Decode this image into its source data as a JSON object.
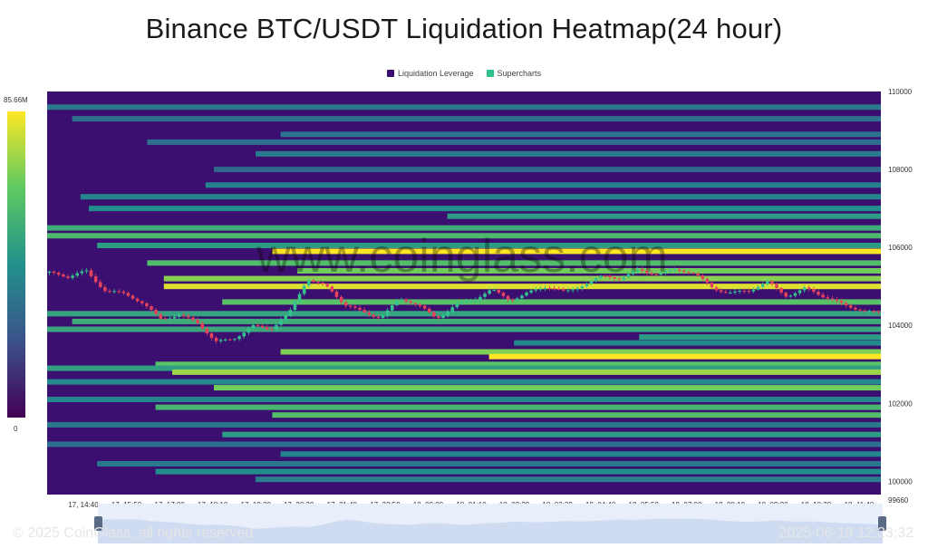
{
  "title": "Binance BTC/USDT Liquidation Heatmap(24 hour)",
  "legend": [
    {
      "label": "Liquidation Leverage",
      "color": "#3b0f6f"
    },
    {
      "label": "Supercharts",
      "color": "#2fc28a"
    }
  ],
  "watermark": "www.coinglass.com",
  "footer": {
    "copyright": "© 2025 CoinGlass, all rights reserved",
    "timestamp": "2025-06-18 12:23:32"
  },
  "colorbar": {
    "max_label": "85.66M",
    "min_label": "0"
  },
  "chart_data": {
    "type": "heatmap",
    "title": "Binance BTC/USDT Liquidation Heatmap(24 hour)",
    "x_tick_labels": [
      "17, 14:40",
      "17, 15:50",
      "17, 17:00",
      "17, 18:10",
      "17, 19:20",
      "17, 20:30",
      "17, 21:40",
      "17, 22:50",
      "18, 00:00",
      "18, 01:10",
      "18, 02:20",
      "18, 03:30",
      "18, 04:40",
      "18, 05:50",
      "18, 07:00",
      "18, 08:10",
      "18, 09:20",
      "18, 10:30",
      "18, 11:40"
    ],
    "y_tick_labels": [
      "110000",
      "108000",
      "106000",
      "104000",
      "102000",
      "100000",
      "99660"
    ],
    "ylim": [
      99660,
      110000
    ],
    "colorbar_range": [
      0,
      85.66
    ],
    "colorbar_unit": "M",
    "liquidation_levels": [
      {
        "price": 109600,
        "start": 0.0,
        "intensity": 0.35
      },
      {
        "price": 109300,
        "start": 0.03,
        "intensity": 0.3
      },
      {
        "price": 108900,
        "start": 0.28,
        "intensity": 0.32
      },
      {
        "price": 108700,
        "start": 0.12,
        "intensity": 0.28
      },
      {
        "price": 108400,
        "start": 0.25,
        "intensity": 0.36
      },
      {
        "price": 108000,
        "start": 0.2,
        "intensity": 0.25
      },
      {
        "price": 107600,
        "start": 0.19,
        "intensity": 0.4
      },
      {
        "price": 107300,
        "start": 0.04,
        "intensity": 0.42
      },
      {
        "price": 107000,
        "start": 0.05,
        "intensity": 0.48
      },
      {
        "price": 106800,
        "start": 0.48,
        "intensity": 0.55
      },
      {
        "price": 106500,
        "start": 0.0,
        "intensity": 0.62
      },
      {
        "price": 106300,
        "start": 0.0,
        "intensity": 0.68
      },
      {
        "price": 106050,
        "start": 0.06,
        "intensity": 0.55
      },
      {
        "price": 105900,
        "start": 0.27,
        "intensity": 1.0
      },
      {
        "price": 105600,
        "start": 0.12,
        "intensity": 0.7
      },
      {
        "price": 105400,
        "start": 0.3,
        "intensity": 0.78
      },
      {
        "price": 105200,
        "start": 0.14,
        "intensity": 0.82
      },
      {
        "price": 105000,
        "start": 0.14,
        "intensity": 0.95
      },
      {
        "price": 104600,
        "start": 0.21,
        "intensity": 0.72
      },
      {
        "price": 104300,
        "start": 0.0,
        "intensity": 0.58
      },
      {
        "price": 104100,
        "start": 0.03,
        "intensity": 0.62
      },
      {
        "price": 103900,
        "start": 0.0,
        "intensity": 0.6
      },
      {
        "price": 103700,
        "start": 0.71,
        "intensity": 0.55
      },
      {
        "price": 103550,
        "start": 0.56,
        "intensity": 0.45
      },
      {
        "price": 103320,
        "start": 0.28,
        "intensity": 0.8
      },
      {
        "price": 103200,
        "start": 0.53,
        "intensity": 1.0
      },
      {
        "price": 103000,
        "start": 0.13,
        "intensity": 0.72
      },
      {
        "price": 102900,
        "start": 0.0,
        "intensity": 0.56
      },
      {
        "price": 102800,
        "start": 0.15,
        "intensity": 0.85
      },
      {
        "price": 102550,
        "start": 0.0,
        "intensity": 0.45
      },
      {
        "price": 102400,
        "start": 0.2,
        "intensity": 0.78
      },
      {
        "price": 102100,
        "start": 0.0,
        "intensity": 0.42
      },
      {
        "price": 101900,
        "start": 0.13,
        "intensity": 0.66
      },
      {
        "price": 101700,
        "start": 0.27,
        "intensity": 0.7
      },
      {
        "price": 101450,
        "start": 0.0,
        "intensity": 0.35
      },
      {
        "price": 101200,
        "start": 0.21,
        "intensity": 0.55
      },
      {
        "price": 100950,
        "start": 0.0,
        "intensity": 0.3
      },
      {
        "price": 100700,
        "start": 0.28,
        "intensity": 0.42
      },
      {
        "price": 100450,
        "start": 0.06,
        "intensity": 0.34
      },
      {
        "price": 100250,
        "start": 0.13,
        "intensity": 0.48
      },
      {
        "price": 100050,
        "start": 0.25,
        "intensity": 0.38
      }
    ],
    "price_anchors": [
      [
        0,
        105350
      ],
      [
        2,
        105200
      ],
      [
        4,
        105400
      ],
      [
        6,
        104950
      ],
      [
        8,
        104800
      ],
      [
        10,
        104550
      ],
      [
        12,
        104200
      ],
      [
        14,
        104300
      ],
      [
        16,
        104050
      ],
      [
        18,
        103550
      ],
      [
        20,
        103700
      ],
      [
        22,
        104000
      ],
      [
        24,
        103850
      ],
      [
        26,
        104300
      ],
      [
        28,
        105250
      ],
      [
        30,
        105000
      ],
      [
        32,
        104500
      ],
      [
        34,
        104350
      ],
      [
        36,
        104250
      ],
      [
        38,
        104650
      ],
      [
        40,
        104500
      ],
      [
        42,
        104200
      ],
      [
        44,
        104550
      ],
      [
        46,
        104600
      ],
      [
        48,
        104900
      ],
      [
        50,
        104700
      ],
      [
        52,
        104850
      ],
      [
        54,
        104950
      ],
      [
        56,
        104850
      ],
      [
        58,
        105100
      ],
      [
        60,
        105250
      ],
      [
        62,
        105150
      ],
      [
        64,
        105450
      ],
      [
        66,
        105350
      ],
      [
        68,
        105400
      ],
      [
        70,
        105300
      ],
      [
        72,
        105000
      ],
      [
        74,
        104850
      ],
      [
        76,
        104850
      ],
      [
        78,
        105100
      ],
      [
        80,
        104800
      ],
      [
        82,
        104950
      ],
      [
        84,
        104700
      ],
      [
        86,
        104550
      ],
      [
        88,
        104450
      ],
      [
        90,
        104300
      ]
    ]
  }
}
